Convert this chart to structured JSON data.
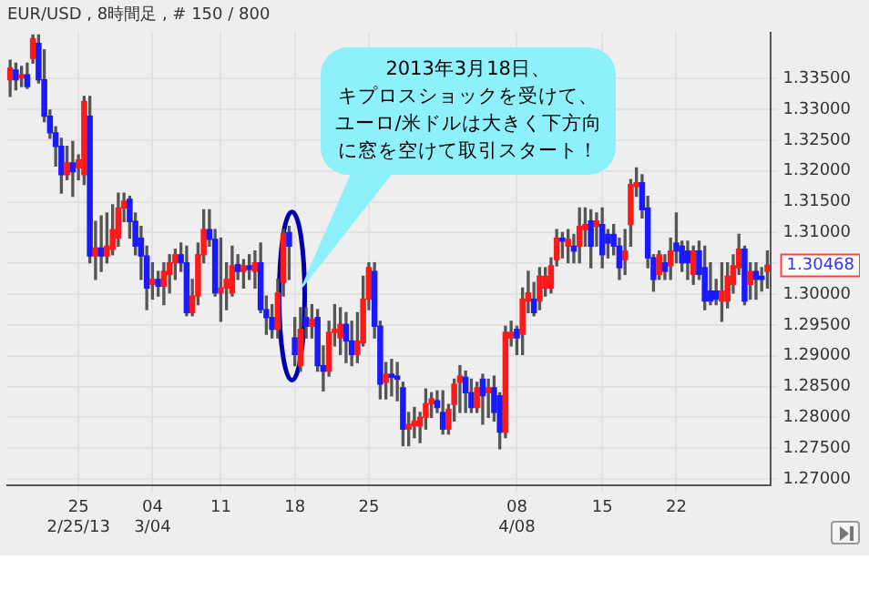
{
  "chart_data": {
    "type": "candlestick",
    "title": "EUR/USD , 8時間足 , # 150 / 800",
    "categories": [
      null,
      null,
      null,
      null,
      null,
      null,
      null,
      null,
      null,
      null,
      null,
      null,
      "25\n2/25/13",
      null,
      null,
      null,
      null,
      null,
      null,
      null,
      null,
      null,
      null,
      null,
      null,
      "04\n3/04",
      null,
      null,
      null,
      null,
      null,
      null,
      null,
      null,
      null,
      null,
      null,
      "11",
      null,
      null,
      null,
      null,
      null,
      null,
      null,
      null,
      null,
      null,
      null,
      null,
      "18",
      null,
      null,
      null,
      null,
      null,
      null,
      null,
      null,
      null,
      null,
      null,
      null,
      "25",
      null,
      null,
      null,
      null,
      null,
      null,
      null,
      null,
      null,
      null,
      null,
      null,
      null,
      null,
      null,
      null,
      null,
      null,
      null,
      null,
      null,
      null,
      null,
      null,
      null,
      "08\n4/08",
      null,
      null,
      null,
      null,
      null,
      null,
      null,
      null,
      null,
      null,
      null,
      null,
      null,
      null,
      "15",
      null,
      null,
      null,
      null,
      null,
      null,
      null,
      null,
      null,
      null,
      null,
      null,
      "22",
      null,
      null,
      null,
      null,
      null,
      null,
      null,
      null,
      null,
      null,
      null,
      null,
      null,
      null,
      null,
      null
    ],
    "ohlc": [
      [
        1.3348,
        1.338,
        1.3321,
        1.3367
      ],
      [
        1.3364,
        1.3375,
        1.3332,
        1.3348
      ],
      [
        1.3351,
        1.337,
        1.3337,
        1.3356
      ],
      [
        1.3356,
        1.3375,
        1.3334,
        1.3337
      ],
      [
        1.3383,
        1.3421,
        1.3375,
        1.3415
      ],
      [
        1.3407,
        1.3421,
        1.3343,
        1.3348
      ],
      [
        1.3348,
        1.3397,
        1.328,
        1.3289
      ],
      [
        1.3289,
        1.3299,
        1.3253,
        1.3262
      ],
      [
        1.3262,
        1.3272,
        1.3208,
        1.324
      ],
      [
        1.324,
        1.3253,
        1.3164,
        1.3194
      ],
      [
        1.3194,
        1.324,
        1.3186,
        1.3213
      ],
      [
        1.3213,
        1.3248,
        1.3159,
        1.3199
      ],
      [
        1.3205,
        1.3226,
        1.3186,
        1.3218
      ],
      [
        1.3194,
        1.3321,
        1.3178,
        1.3313
      ],
      [
        1.3289,
        1.3321,
        1.3051,
        1.3062
      ],
      [
        1.3062,
        1.3118,
        1.3024,
        1.3075
      ],
      [
        1.3075,
        1.3127,
        1.3037,
        1.3062
      ],
      [
        1.3062,
        1.3132,
        1.3051,
        1.3078
      ],
      [
        1.3073,
        1.3145,
        1.3064,
        1.3105
      ],
      [
        1.3091,
        1.3164,
        1.3078,
        1.314
      ],
      [
        1.314,
        1.3164,
        1.3118,
        1.3151
      ],
      [
        1.3154,
        1.3159,
        1.3091,
        1.3118
      ],
      [
        1.3118,
        1.3132,
        1.3064,
        1.3078
      ],
      [
        1.3091,
        1.311,
        1.3024,
        1.3062
      ],
      [
        1.3062,
        1.3078,
        1.2975,
        1.301
      ],
      [
        1.3016,
        1.3051,
        1.2992,
        1.3024
      ],
      [
        1.3024,
        1.3037,
        1.2997,
        1.3013
      ],
      [
        1.3013,
        1.3051,
        1.2983,
        1.3037
      ],
      [
        1.3032,
        1.3064,
        1.3002,
        1.3051
      ],
      [
        1.3051,
        1.3073,
        1.3024,
        1.3064
      ],
      [
        1.3064,
        1.3083,
        1.3037,
        1.3051
      ],
      [
        1.3051,
        1.3078,
        1.2965,
        1.297
      ],
      [
        1.297,
        1.3024,
        1.2965,
        1.2997
      ],
      [
        1.2997,
        1.3083,
        1.2983,
        1.3064
      ],
      [
        1.3064,
        1.3137,
        1.3051,
        1.3105
      ],
      [
        1.3105,
        1.3137,
        1.3078,
        1.3089
      ],
      [
        1.3089,
        1.3105,
        1.2997,
        1.3002
      ],
      [
        1.3002,
        1.3091,
        1.2956,
        1.301
      ],
      [
        1.301,
        1.3051,
        1.2975,
        1.3024
      ],
      [
        1.3002,
        1.3078,
        1.2997,
        1.3046
      ],
      [
        1.3048,
        1.3064,
        1.3024,
        1.3037
      ],
      [
        1.3037,
        1.3056,
        1.301,
        1.3046
      ],
      [
        1.3046,
        1.3064,
        1.3024,
        1.304
      ],
      [
        1.3037,
        1.307,
        1.301,
        1.3051
      ],
      [
        1.3051,
        1.3083,
        1.297,
        1.2975
      ],
      [
        1.2975,
        1.2997,
        1.2935,
        1.2962
      ],
      [
        1.2962,
        1.2983,
        1.2929,
        1.2943
      ],
      [
        1.2943,
        1.3024,
        1.2929,
        1.3002
      ],
      [
        1.3019,
        1.3105,
        1.2997,
        1.3097
      ],
      [
        1.31,
        1.311,
        1.3024,
        1.3078
      ],
      [
        1.2929,
        1.2962,
        1.2884,
        1.2902
      ],
      [
        1.2884,
        1.2978,
        1.2875,
        1.2943
      ],
      [
        1.2962,
        1.2978,
        1.2929,
        1.2948
      ],
      [
        1.2948,
        1.2983,
        1.2929,
        1.2959
      ],
      [
        1.2962,
        1.2975,
        1.2875,
        1.2884
      ],
      [
        1.2884,
        1.2916,
        1.2843,
        1.2875
      ],
      [
        1.2875,
        1.2956,
        1.2867,
        1.2938
      ],
      [
        1.2938,
        1.2983,
        1.2916,
        1.2943
      ],
      [
        1.2929,
        1.2978,
        1.2902,
        1.2951
      ],
      [
        1.2951,
        1.297,
        1.2889,
        1.2924
      ],
      [
        1.2924,
        1.2956,
        1.2884,
        1.2902
      ],
      [
        1.2902,
        1.297,
        1.2889,
        1.2924
      ],
      [
        1.2921,
        1.3029,
        1.2916,
        1.2992
      ],
      [
        1.2992,
        1.3051,
        1.2975,
        1.3043
      ],
      [
        1.3037,
        1.3051,
        1.2929,
        1.2948
      ],
      [
        1.2948,
        1.2956,
        1.283,
        1.2854
      ],
      [
        1.2857,
        1.2889,
        1.283,
        1.287
      ],
      [
        1.287,
        1.2894,
        1.2835,
        1.2865
      ],
      [
        1.2867,
        1.2889,
        1.2827,
        1.2862
      ],
      [
        1.2848,
        1.2857,
        1.2754,
        1.2781
      ],
      [
        1.2781,
        1.2808,
        1.2754,
        1.2789
      ],
      [
        1.2786,
        1.2816,
        1.2767,
        1.2794
      ],
      [
        1.2786,
        1.2808,
        1.2759,
        1.28
      ],
      [
        1.28,
        1.2846,
        1.2781,
        1.2822
      ],
      [
        1.2822,
        1.284,
        1.28,
        1.283
      ],
      [
        1.2827,
        1.2843,
        1.2808,
        1.2816
      ],
      [
        1.2808,
        1.2843,
        1.2773,
        1.2781
      ],
      [
        1.2781,
        1.2821,
        1.2773,
        1.2813
      ],
      [
        1.2821,
        1.2862,
        1.2794,
        1.2854
      ],
      [
        1.2857,
        1.2884,
        1.2808,
        1.2867
      ],
      [
        1.2865,
        1.2875,
        1.2808,
        1.284
      ],
      [
        1.284,
        1.2862,
        1.2808,
        1.2816
      ],
      [
        1.2816,
        1.2857,
        1.2808,
        1.2848
      ],
      [
        1.2862,
        1.287,
        1.2789,
        1.2835
      ],
      [
        1.284,
        1.2862,
        1.28,
        1.2848
      ],
      [
        1.2848,
        1.2867,
        1.2794,
        1.2808
      ],
      [
        1.2835,
        1.284,
        1.2749,
        1.2776
      ],
      [
        1.2776,
        1.2948,
        1.2767,
        1.2938
      ],
      [
        1.2929,
        1.2956,
        1.2916,
        1.2938
      ],
      [
        1.2943,
        1.2948,
        1.2902,
        1.2929
      ],
      [
        1.2935,
        1.301,
        1.2902,
        1.2992
      ],
      [
        1.2989,
        1.3037,
        1.297,
        1.3002
      ],
      [
        1.2992,
        1.3019,
        1.2965,
        1.297
      ],
      [
        1.2989,
        1.3043,
        1.2975,
        1.3029
      ],
      [
        1.301,
        1.3043,
        1.2997,
        1.3029
      ],
      [
        1.301,
        1.3059,
        1.3002,
        1.3046
      ],
      [
        1.3056,
        1.3105,
        1.3046,
        1.3091
      ],
      [
        1.3091,
        1.31,
        1.3059,
        1.3086
      ],
      [
        1.3078,
        1.3105,
        1.3051,
        1.3089
      ],
      [
        1.3078,
        1.3097,
        1.3051,
        1.307
      ],
      [
        1.3078,
        1.314,
        1.3051,
        1.311
      ],
      [
        1.3105,
        1.314,
        1.3078,
        1.3113
      ],
      [
        1.3119,
        1.3137,
        1.3043,
        1.3078
      ],
      [
        1.311,
        1.3132,
        1.3078,
        1.3119
      ],
      [
        1.3113,
        1.314,
        1.3043,
        1.3064
      ],
      [
        1.3097,
        1.3105,
        1.3059,
        1.3083
      ],
      [
        1.3097,
        1.3113,
        1.3064,
        1.3078
      ],
      [
        1.3078,
        1.3091,
        1.3024,
        1.3043
      ],
      [
        1.3056,
        1.3105,
        1.3032,
        1.307
      ],
      [
        1.3113,
        1.3186,
        1.3078,
        1.3178
      ],
      [
        1.3175,
        1.3205,
        1.3159,
        1.3181
      ],
      [
        1.3181,
        1.3194,
        1.3124,
        1.3137
      ],
      [
        1.314,
        1.3159,
        1.3043,
        1.3059
      ],
      [
        1.3059,
        1.3064,
        1.3005,
        1.3024
      ],
      [
        1.3032,
        1.307,
        1.3024,
        1.3064
      ],
      [
        1.3051,
        1.3064,
        1.3024,
        1.3037
      ],
      [
        1.3046,
        1.3091,
        1.3024,
        1.307
      ],
      [
        1.3083,
        1.3132,
        1.3051,
        1.307
      ],
      [
        1.3078,
        1.3086,
        1.3037,
        1.3051
      ],
      [
        1.307,
        1.3086,
        1.3024,
        1.3051
      ],
      [
        1.3032,
        1.3078,
        1.3016,
        1.307
      ],
      [
        1.307,
        1.3086,
        1.3024,
        1.3032
      ],
      [
        1.3043,
        1.3078,
        1.2975,
        1.2989
      ],
      [
        1.3005,
        1.3051,
        1.2983,
        1.2989
      ],
      [
        1.3005,
        1.3024,
        1.2983,
        1.2992
      ],
      [
        1.2989,
        1.3051,
        1.2956,
        1.3005
      ],
      [
        1.2989,
        1.3051,
        1.2978,
        1.3029
      ],
      [
        1.3016,
        1.3064,
        1.3002,
        1.3046
      ],
      [
        1.3043,
        1.3097,
        1.3032,
        1.3073
      ],
      [
        1.3073,
        1.3078,
        1.2983,
        1.2989
      ],
      [
        1.3016,
        1.3051,
        1.2992,
        1.3037
      ],
      [
        1.3037,
        1.3051,
        1.2992,
        1.3024
      ],
      [
        1.3029,
        1.3043,
        1.3005,
        1.3024
      ],
      [
        1.3037,
        1.307,
        1.301,
        1.30468
      ]
    ],
    "ylim": [
      1.269,
      1.3425
    ],
    "yticks": [
      {
        "value": 1.27,
        "label": "1.27000"
      },
      {
        "value": 1.275,
        "label": "1.27500"
      },
      {
        "value": 1.28,
        "label": "1.28000"
      },
      {
        "value": 1.285,
        "label": "1.28500"
      },
      {
        "value": 1.29,
        "label": "1.29000"
      },
      {
        "value": 1.295,
        "label": "1.29500"
      },
      {
        "value": 1.3,
        "label": "1.30000"
      },
      {
        "value": 1.305,
        "label": null
      },
      {
        "value": 1.31,
        "label": "1.31000"
      },
      {
        "value": 1.315,
        "label": "1.31500"
      },
      {
        "value": 1.32,
        "label": "1.32000"
      },
      {
        "value": 1.325,
        "label": "1.32500"
      },
      {
        "value": 1.33,
        "label": "1.33000"
      },
      {
        "value": 1.335,
        "label": "1.33500"
      }
    ],
    "annotations": [
      "2013年3月18日、キプロスショックを受けて、ユーロ/米ドルは大きく下方向に窓を空けて取引スタート！",
      "1.30468"
    ],
    "grid": true,
    "legend": false
  }
}
